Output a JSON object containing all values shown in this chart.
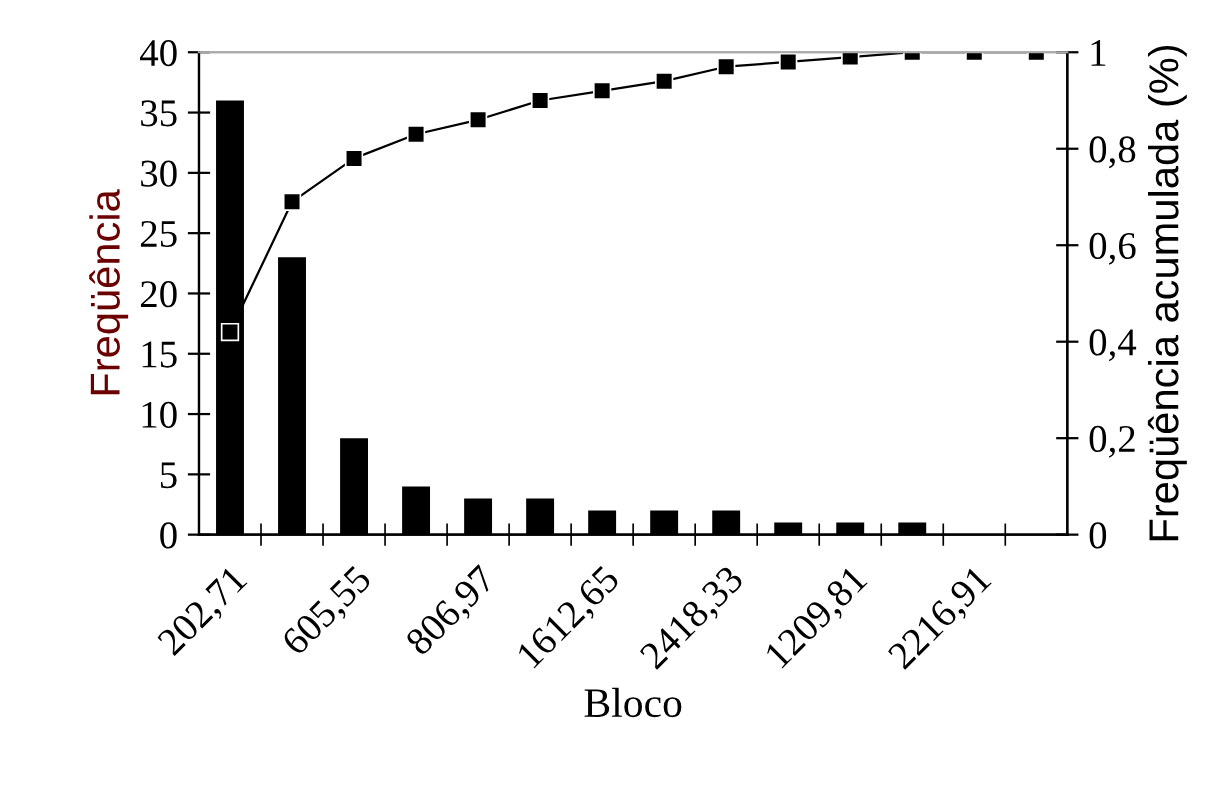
{
  "chart_data": {
    "type": "bar",
    "xlabel": "Bloco",
    "ylabel": "Freqüência",
    "y2label": "Freqüência acumulada (%)",
    "categories": [
      "202,71",
      null,
      "605,55",
      null,
      "806,97",
      null,
      "1612,65",
      null,
      "2418,33",
      null,
      "1209,81",
      null,
      "2216,91",
      null
    ],
    "series": [
      {
        "color": "#000000",
        "values": [
          36,
          23,
          8,
          4,
          3,
          3,
          2,
          2,
          2,
          1,
          1,
          1,
          null,
          null
        ]
      },
      {
        "type": "line",
        "axis": "y2",
        "color": "#000000",
        "marker": "square",
        "line_style": "solid",
        "values": [
          0.42,
          0.69,
          0.78,
          0.83,
          0.86,
          0.9,
          0.92,
          0.94,
          0.97,
          0.98,
          0.99,
          1,
          1,
          1
        ]
      }
    ],
    "ylim": [
      0,
      40
    ],
    "yticks": [
      0,
      5,
      10,
      15,
      20,
      25,
      30,
      35,
      40
    ],
    "y2lim": [
      0,
      1
    ],
    "y2ticks": [
      0,
      {
        "value": 0.2,
        "label": "0,2"
      },
      {
        "value": 0.4,
        "label": "0,4"
      },
      {
        "value": 0.6,
        "label": "0,6"
      },
      {
        "value": 0.8,
        "label": "0,8"
      },
      1
    ],
    "grid": false,
    "legend": false
  }
}
